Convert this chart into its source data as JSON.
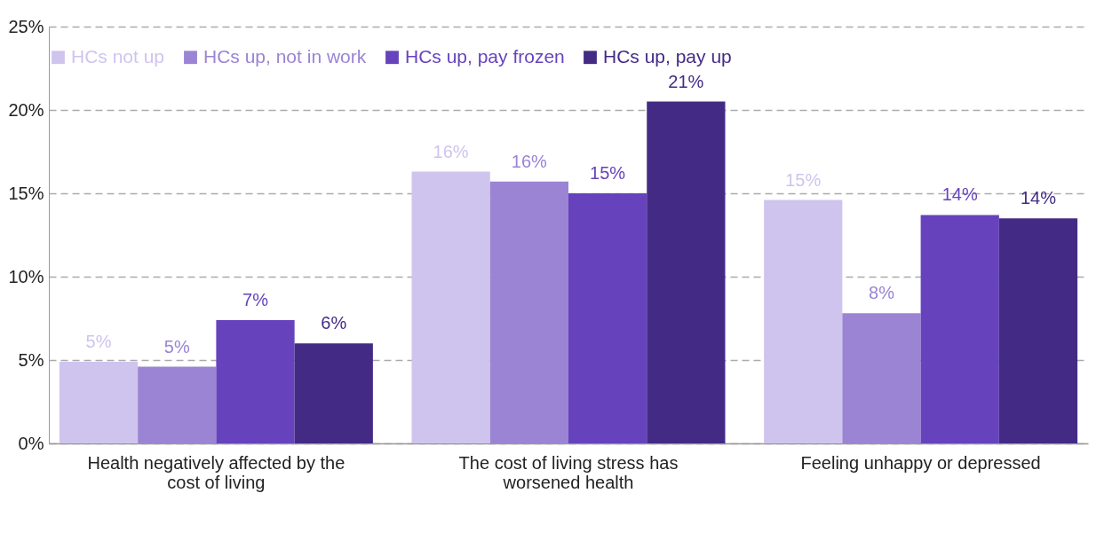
{
  "chart_data": {
    "type": "bar",
    "categories": [
      "Health negatively affected by the cost of living",
      "The cost of living stress has worsened health",
      "Feeling unhappy or depressed"
    ],
    "series": [
      {
        "name": "HCs not up",
        "color": "#cfc4ee",
        "values": [
          4.9,
          16.3,
          14.6
        ],
        "value_labels": [
          "5%",
          "16%",
          "15%"
        ]
      },
      {
        "name": "HCs up, not in work",
        "color": "#9b84d4",
        "values": [
          4.6,
          15.7,
          7.8
        ],
        "value_labels": [
          "5%",
          "16%",
          "8%"
        ]
      },
      {
        "name": "HCs up, pay frozen",
        "color": "#6643bd",
        "values": [
          7.4,
          15.0,
          13.7
        ],
        "value_labels": [
          "7%",
          "15%",
          "14%"
        ]
      },
      {
        "name": "HCs up, pay up",
        "color": "#432b85",
        "values": [
          6.0,
          20.5,
          13.5
        ],
        "value_labels": [
          "6%",
          "21%",
          "14%"
        ]
      }
    ],
    "ylim": [
      0,
      25
    ],
    "yticks": [
      {
        "value": 0,
        "label": "0%"
      },
      {
        "value": 5,
        "label": "5%"
      },
      {
        "value": 10,
        "label": "10%"
      },
      {
        "value": 15,
        "label": "15%"
      },
      {
        "value": 20,
        "label": "20%"
      },
      {
        "value": 25,
        "label": "25%"
      }
    ],
    "grid": "y",
    "legend": "top"
  }
}
